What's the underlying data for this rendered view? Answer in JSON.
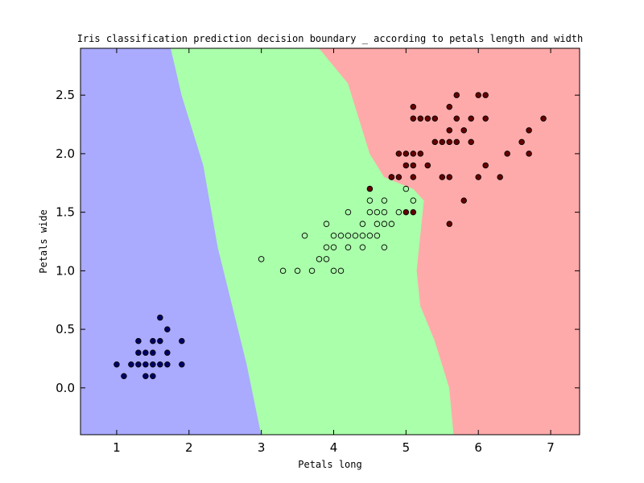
{
  "chart_data": {
    "type": "scatter",
    "title": "Iris classification prediction decision boundary _ according to petals length and width",
    "xlabel": "Petals long",
    "ylabel": "Petals wide",
    "xlim": [
      0.5,
      7.4
    ],
    "ylim": [
      -0.4,
      2.9
    ],
    "xticks": [
      "1",
      "2",
      "3",
      "4",
      "5",
      "6",
      "7"
    ],
    "yticks": [
      "0.0",
      "0.5",
      "1.0",
      "1.5",
      "2.0",
      "2.5"
    ],
    "grid": false,
    "legend": "none",
    "regions": [
      {
        "class": 0,
        "color": "#aaaaff",
        "polygon": [
          [
            0.5,
            -0.4
          ],
          [
            3.0,
            -0.4
          ],
          [
            2.9,
            -0.1
          ],
          [
            2.8,
            0.2
          ],
          [
            2.6,
            0.7
          ],
          [
            2.4,
            1.2
          ],
          [
            2.2,
            1.9
          ],
          [
            1.9,
            2.5
          ],
          [
            1.75,
            2.9
          ],
          [
            0.5,
            2.9
          ]
        ]
      },
      {
        "class": 1,
        "color": "#aaffaa",
        "polygon": [
          [
            3.0,
            -0.4
          ],
          [
            5.66,
            -0.4
          ],
          [
            5.6,
            0.0
          ],
          [
            5.4,
            0.4
          ],
          [
            5.2,
            0.7
          ],
          [
            5.15,
            1.0
          ],
          [
            5.2,
            1.3
          ],
          [
            5.25,
            1.6
          ],
          [
            5.1,
            1.7
          ],
          [
            4.7,
            1.8
          ],
          [
            4.5,
            2.0
          ],
          [
            4.3,
            2.4
          ],
          [
            4.2,
            2.6
          ],
          [
            4.0,
            2.75
          ],
          [
            3.8,
            2.9
          ],
          [
            1.75,
            2.9
          ],
          [
            1.9,
            2.5
          ],
          [
            2.2,
            1.9
          ],
          [
            2.4,
            1.2
          ],
          [
            2.6,
            0.7
          ],
          [
            2.8,
            0.2
          ],
          [
            2.9,
            -0.1
          ]
        ]
      },
      {
        "class": 2,
        "color": "#ffaaaa",
        "polygon": [
          [
            5.66,
            -0.4
          ],
          [
            7.4,
            -0.4
          ],
          [
            7.4,
            2.9
          ],
          [
            3.8,
            2.9
          ],
          [
            4.0,
            2.75
          ],
          [
            4.2,
            2.6
          ],
          [
            4.3,
            2.4
          ],
          [
            4.5,
            2.0
          ],
          [
            4.7,
            1.8
          ],
          [
            5.1,
            1.7
          ],
          [
            5.25,
            1.6
          ],
          [
            5.2,
            1.3
          ],
          [
            5.15,
            1.0
          ],
          [
            5.2,
            0.7
          ],
          [
            5.4,
            0.4
          ],
          [
            5.6,
            0.0
          ]
        ]
      }
    ],
    "series": [
      {
        "class": 0,
        "color": "#000066",
        "points": [
          [
            1.0,
            0.2
          ],
          [
            1.1,
            0.1
          ],
          [
            1.2,
            0.2
          ],
          [
            1.3,
            0.2
          ],
          [
            1.3,
            0.3
          ],
          [
            1.3,
            0.4
          ],
          [
            1.4,
            0.1
          ],
          [
            1.4,
            0.2
          ],
          [
            1.4,
            0.3
          ],
          [
            1.5,
            0.1
          ],
          [
            1.5,
            0.2
          ],
          [
            1.5,
            0.3
          ],
          [
            1.5,
            0.4
          ],
          [
            1.6,
            0.2
          ],
          [
            1.6,
            0.4
          ],
          [
            1.6,
            0.6
          ],
          [
            1.7,
            0.3
          ],
          [
            1.7,
            0.5
          ],
          [
            1.7,
            0.2
          ],
          [
            1.9,
            0.2
          ],
          [
            1.9,
            0.4
          ]
        ]
      },
      {
        "class": 1,
        "color": "#aaffaa",
        "points": [
          [
            3.0,
            1.1
          ],
          [
            3.3,
            1.0
          ],
          [
            3.5,
            1.0
          ],
          [
            3.6,
            1.3
          ],
          [
            3.7,
            1.0
          ],
          [
            3.8,
            1.1
          ],
          [
            3.9,
            1.1
          ],
          [
            3.9,
            1.2
          ],
          [
            3.9,
            1.4
          ],
          [
            4.0,
            1.0
          ],
          [
            4.0,
            1.2
          ],
          [
            4.0,
            1.3
          ],
          [
            4.1,
            1.0
          ],
          [
            4.1,
            1.3
          ],
          [
            4.2,
            1.2
          ],
          [
            4.2,
            1.3
          ],
          [
            4.2,
            1.5
          ],
          [
            4.3,
            1.3
          ],
          [
            4.4,
            1.2
          ],
          [
            4.4,
            1.3
          ],
          [
            4.4,
            1.4
          ],
          [
            4.5,
            1.3
          ],
          [
            4.5,
            1.5
          ],
          [
            4.5,
            1.6
          ],
          [
            4.6,
            1.3
          ],
          [
            4.6,
            1.4
          ],
          [
            4.6,
            1.5
          ],
          [
            4.7,
            1.2
          ],
          [
            4.7,
            1.4
          ],
          [
            4.7,
            1.5
          ],
          [
            4.7,
            1.6
          ],
          [
            4.8,
            1.4
          ],
          [
            4.8,
            1.8
          ],
          [
            4.9,
            1.5
          ],
          [
            5.0,
            1.7
          ],
          [
            5.1,
            1.6
          ]
        ]
      },
      {
        "class": 2,
        "color": "#660000",
        "points": [
          [
            4.5,
            1.7
          ],
          [
            4.8,
            1.8
          ],
          [
            4.9,
            1.8
          ],
          [
            4.9,
            2.0
          ],
          [
            5.0,
            1.5
          ],
          [
            5.0,
            1.9
          ],
          [
            5.0,
            2.0
          ],
          [
            5.1,
            1.5
          ],
          [
            5.1,
            1.8
          ],
          [
            5.1,
            1.9
          ],
          [
            5.1,
            2.0
          ],
          [
            5.1,
            2.3
          ],
          [
            5.1,
            2.4
          ],
          [
            5.2,
            2.0
          ],
          [
            5.2,
            2.3
          ],
          [
            5.3,
            1.9
          ],
          [
            5.3,
            2.3
          ],
          [
            5.4,
            2.1
          ],
          [
            5.4,
            2.3
          ],
          [
            5.5,
            1.8
          ],
          [
            5.5,
            2.1
          ],
          [
            5.6,
            1.4
          ],
          [
            5.6,
            1.8
          ],
          [
            5.6,
            2.1
          ],
          [
            5.6,
            2.2
          ],
          [
            5.6,
            2.4
          ],
          [
            5.7,
            2.1
          ],
          [
            5.7,
            2.3
          ],
          [
            5.7,
            2.5
          ],
          [
            5.8,
            1.6
          ],
          [
            5.8,
            2.2
          ],
          [
            5.9,
            2.1
          ],
          [
            5.9,
            2.3
          ],
          [
            6.0,
            1.8
          ],
          [
            6.0,
            2.5
          ],
          [
            6.1,
            1.9
          ],
          [
            6.1,
            2.3
          ],
          [
            6.1,
            2.5
          ],
          [
            6.3,
            1.8
          ],
          [
            6.4,
            2.0
          ],
          [
            6.6,
            2.1
          ],
          [
            6.7,
            2.0
          ],
          [
            6.7,
            2.2
          ],
          [
            6.9,
            2.3
          ]
        ]
      }
    ]
  }
}
